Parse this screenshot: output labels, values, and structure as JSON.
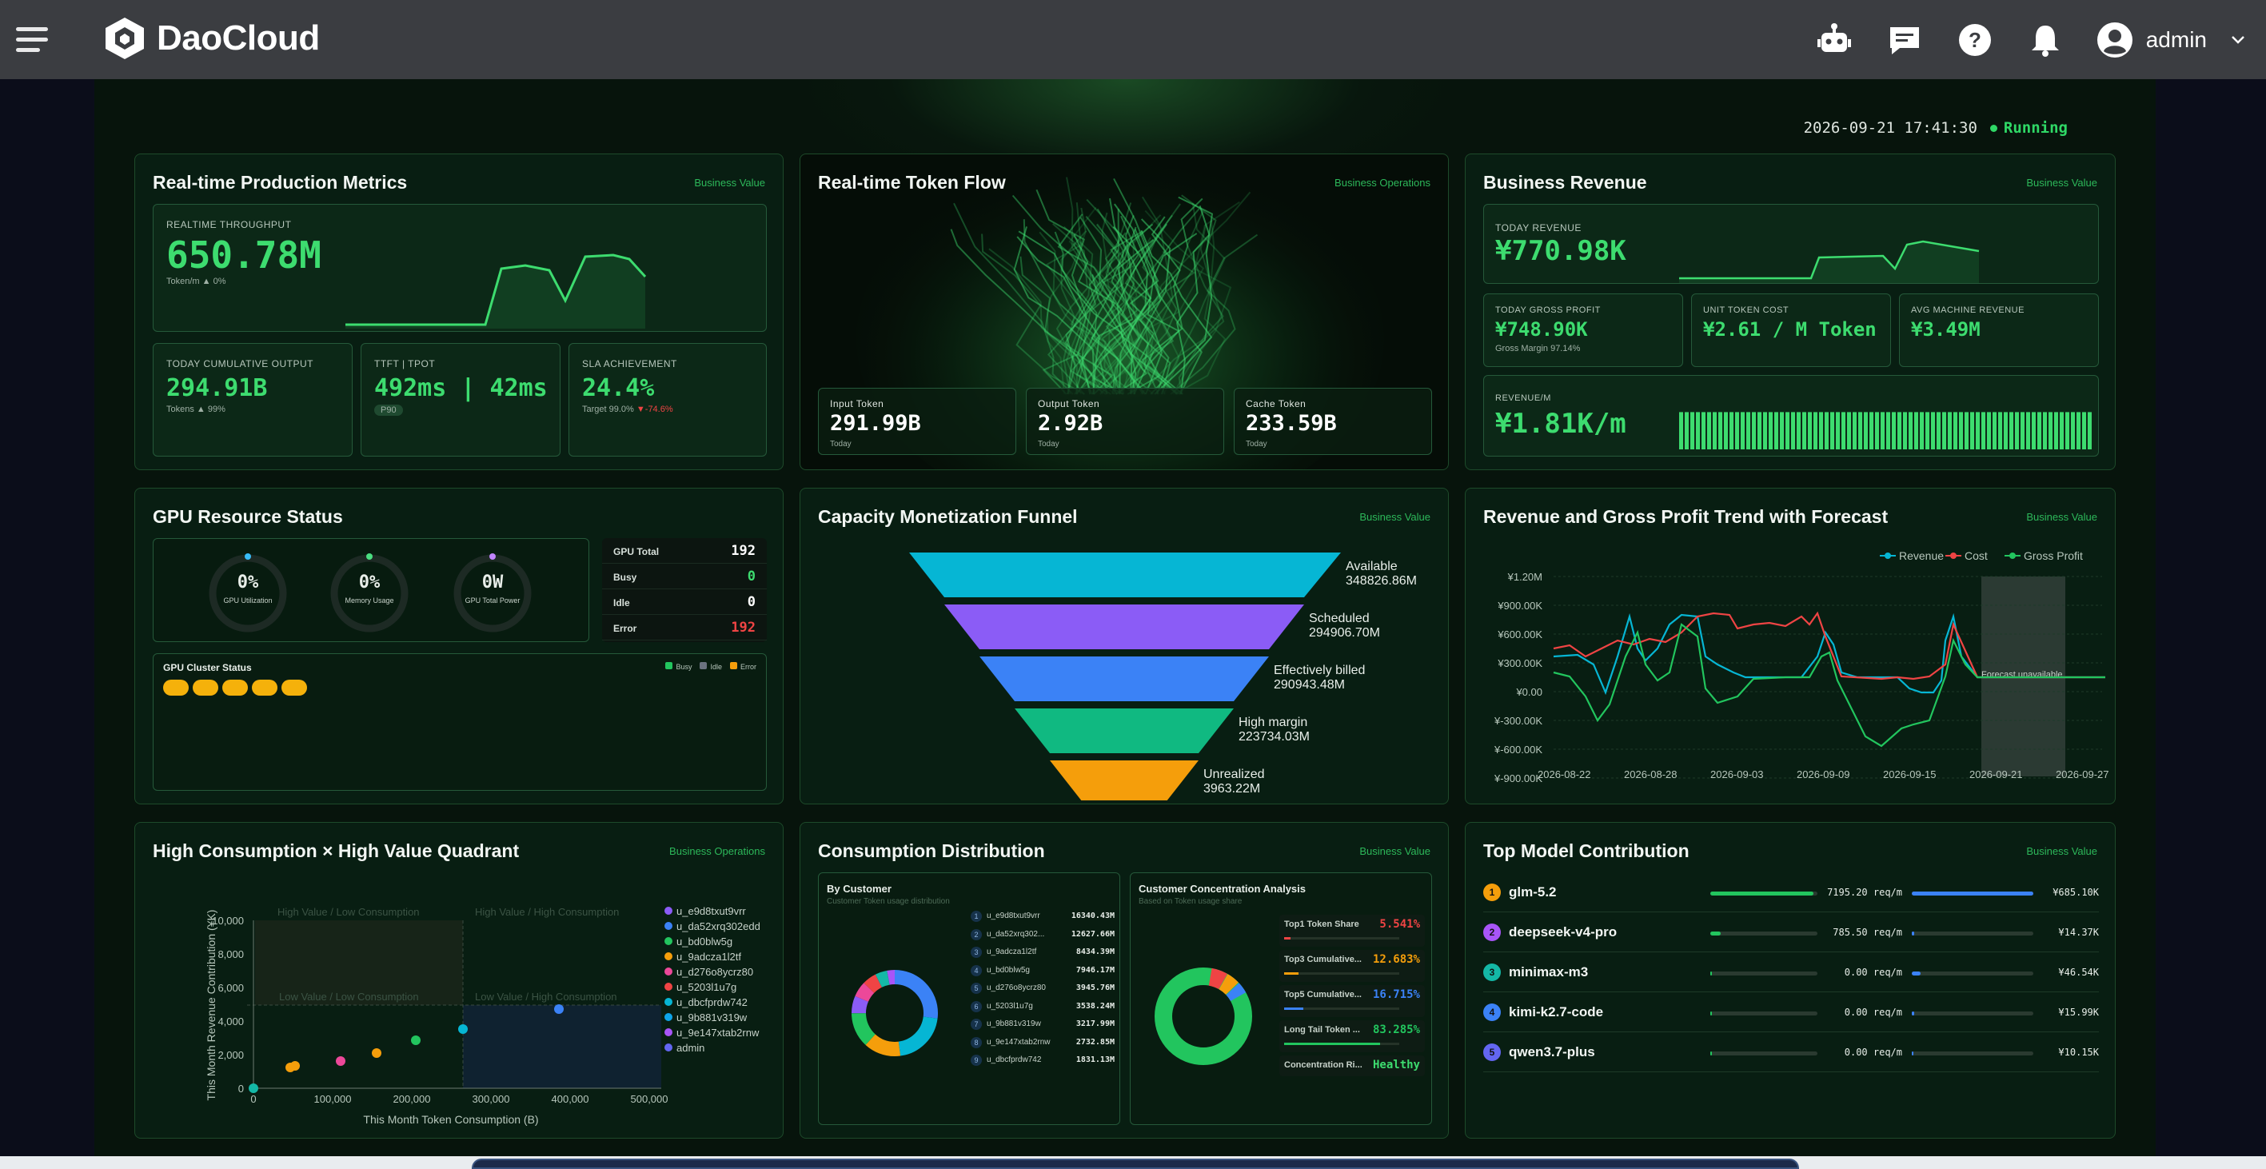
{
  "header": {
    "brand": "DaoCloud",
    "user": "admin"
  },
  "status": {
    "datetime": "2026-09-21 17:41:30",
    "state": "Running"
  },
  "production": {
    "title": "Real-time Production Metrics",
    "tag": "Business Value",
    "throughput_label": "REALTIME THROUGHPUT",
    "throughput": "650.78M",
    "throughput_sub": "Token/m ▲ 0%",
    "output_label": "TODAY CUMULATIVE OUTPUT",
    "output": "294.91B",
    "output_sub": "Tokens ▲ 99%",
    "ttft_label": "TTFT | TPOT",
    "ttft": "492ms | 42ms",
    "ttft_badge": "P90",
    "sla_label": "SLA ACHIEVEMENT",
    "sla": "24.4%",
    "sla_sub_a": "Target 99.0%",
    "sla_sub_b": "▼-74.6%"
  },
  "token_flow": {
    "title": "Real-time Token Flow",
    "tag": "Business Operations",
    "input_label": "Input Token",
    "input": "291.99B",
    "input_sub": "Today",
    "output_label": "Output Token",
    "output": "2.92B",
    "output_sub": "Today",
    "cache_label": "Cache Token",
    "cache": "233.59B",
    "cache_sub": "Today"
  },
  "revenue": {
    "title": "Business Revenue",
    "tag": "Business Value",
    "today_label": "TODAY REVENUE",
    "today": "¥770.98K",
    "gross_label": "TODAY GROSS PROFIT",
    "gross": "¥748.90K",
    "gross_sub": "Gross Margin 97.14%",
    "unit_label": "UNIT TOKEN COST",
    "unit": "¥2.61 / M Token",
    "avg_label": "AVG MACHINE REVENUE",
    "avg": "¥3.49M",
    "rpm_label": "REVENUE/M",
    "rpm": "¥1.81K/m"
  },
  "gpu": {
    "title": "GPU Resource Status",
    "util": "0%",
    "util_label": "GPU Utilization",
    "mem": "0%",
    "mem_label": "Memory Usage",
    "power": "0W",
    "power_label": "GPU Total Power",
    "rows": [
      {
        "label": "GPU Total",
        "value": "192"
      },
      {
        "label": "Busy",
        "value": "0"
      },
      {
        "label": "Idle",
        "value": "0"
      },
      {
        "label": "Error",
        "value": "192"
      }
    ],
    "cluster_title": "GPU Cluster Status",
    "legend": [
      "Busy",
      "Idle",
      "Error"
    ]
  },
  "funnel": {
    "title": "Capacity Monetization Funnel",
    "tag": "Business Value",
    "stages": [
      {
        "name": "Available",
        "value": "348826.86M"
      },
      {
        "name": "Scheduled",
        "value": "294906.70M"
      },
      {
        "name": "Effectively billed",
        "value": "290943.48M"
      },
      {
        "name": "High margin",
        "value": "223734.03M"
      },
      {
        "name": "Unrealized",
        "value": "3963.22M"
      }
    ]
  },
  "trend": {
    "title": "Revenue and Gross Profit Trend with Forecast",
    "tag": "Business Value",
    "legend": [
      "Revenue",
      "Cost",
      "Gross Profit"
    ],
    "yticks": [
      "¥1.20M",
      "¥900.00K",
      "¥600.00K",
      "¥300.00K",
      "¥0.00",
      "¥-300.00K",
      "¥-600.00K",
      "¥-900.00K"
    ],
    "xticks": [
      "2026-08-22",
      "2026-08-28",
      "2026-09-03",
      "2026-09-09",
      "2026-09-15",
      "2026-09-21",
      "2026-09-27"
    ],
    "forecast": "Forecast unavailable"
  },
  "quadrant": {
    "title": "High Consumption × High Value Quadrant",
    "tag": "Business Operations",
    "q_tl": "High Value / Low Consumption",
    "q_tr": "High Value / High Consumption",
    "q_bl": "Low Value / Low Consumption",
    "q_br": "Low Value / High Consumption",
    "ylabel": "This Month Revenue Contribution (¥K)",
    "xlabel": "This Month Token Consumption (B)",
    "yticks": [
      "10,000",
      "8,000",
      "6,000",
      "4,000",
      "2,000",
      "0"
    ],
    "xticks": [
      "0",
      "100,000",
      "200,000",
      "300,000",
      "400,000",
      "500,000"
    ],
    "legend": [
      "u_e9d8txut9vrr",
      "u_da52xrq302edd",
      "u_bd0blw5g",
      "u_9adcza1l2tf",
      "u_d276o8ycrz80",
      "u_5203l1u7g",
      "u_dbcfprdw742",
      "u_9b881v319w",
      "u_9e147xtab2rnw",
      "admin"
    ]
  },
  "consumption": {
    "title": "Consumption Distribution",
    "tag": "Business Value",
    "by_customer": "By Customer",
    "by_customer_sub": "Customer Token usage distribution",
    "customers": [
      {
        "n": "1",
        "name": "u_e9d8txut9vrr",
        "v": "16340.43M"
      },
      {
        "n": "2",
        "name": "u_da52xrq302...",
        "v": "12627.66M"
      },
      {
        "n": "3",
        "name": "u_9adcza1l2tf",
        "v": "8434.39M"
      },
      {
        "n": "4",
        "name": "u_bd0blw5g",
        "v": "7946.17M"
      },
      {
        "n": "5",
        "name": "u_d276o8ycrz80",
        "v": "3945.76M"
      },
      {
        "n": "6",
        "name": "u_5203l1u7g",
        "v": "3538.24M"
      },
      {
        "n": "7",
        "name": "u_9b881v319w",
        "v": "3217.99M"
      },
      {
        "n": "8",
        "name": "u_9e147xtab2rnw",
        "v": "2732.85M"
      },
      {
        "n": "9",
        "name": "u_dbcfprdw742",
        "v": "1831.13M"
      }
    ],
    "conc_title": "Customer Concentration Analysis",
    "conc_sub": "Based on Token usage share",
    "conc": [
      {
        "label": "Top1 Token Share",
        "v": "5.541%",
        "c": "#ef4444",
        "p": 5.5
      },
      {
        "label": "Top3 Cumulative...",
        "v": "12.683%",
        "c": "#f59e0b",
        "p": 12.7
      },
      {
        "label": "Top5 Cumulative...",
        "v": "16.715%",
        "c": "#3b82f6",
        "p": 16.7
      },
      {
        "label": "Long Tail Token ...",
        "v": "83.285%",
        "c": "#22c55e",
        "p": 83.3
      }
    ],
    "conc_risk_label": "Concentration Ri...",
    "conc_risk": "Healthy"
  },
  "models": {
    "title": "Top Model Contribution",
    "tag": "Business Value",
    "items": [
      {
        "n": "1",
        "name": "glm-5.2",
        "req": "7195.20 req/m",
        "rev": "¥685.10K",
        "color": "#f59e0b",
        "rp": 0.96,
        "vp": 1.0
      },
      {
        "n": "2",
        "name": "deepseek-v4-pro",
        "req": "785.50 req/m",
        "rev": "¥14.37K",
        "color": "#a855f7",
        "rp": 0.1,
        "vp": 0.02
      },
      {
        "n": "3",
        "name": "minimax-m3",
        "req": "0.00 req/m",
        "rev": "¥46.54K",
        "color": "#14b8a6",
        "rp": 0.0,
        "vp": 0.07
      },
      {
        "n": "4",
        "name": "kimi-k2.7-code",
        "req": "0.00 req/m",
        "rev": "¥15.99K",
        "color": "#3b82f6",
        "rp": 0.0,
        "vp": 0.02
      },
      {
        "n": "5",
        "name": "qwen3.7-plus",
        "req": "0.00 req/m",
        "rev": "¥10.15K",
        "color": "#6366f1",
        "rp": 0.0,
        "vp": 0.015
      }
    ]
  }
}
